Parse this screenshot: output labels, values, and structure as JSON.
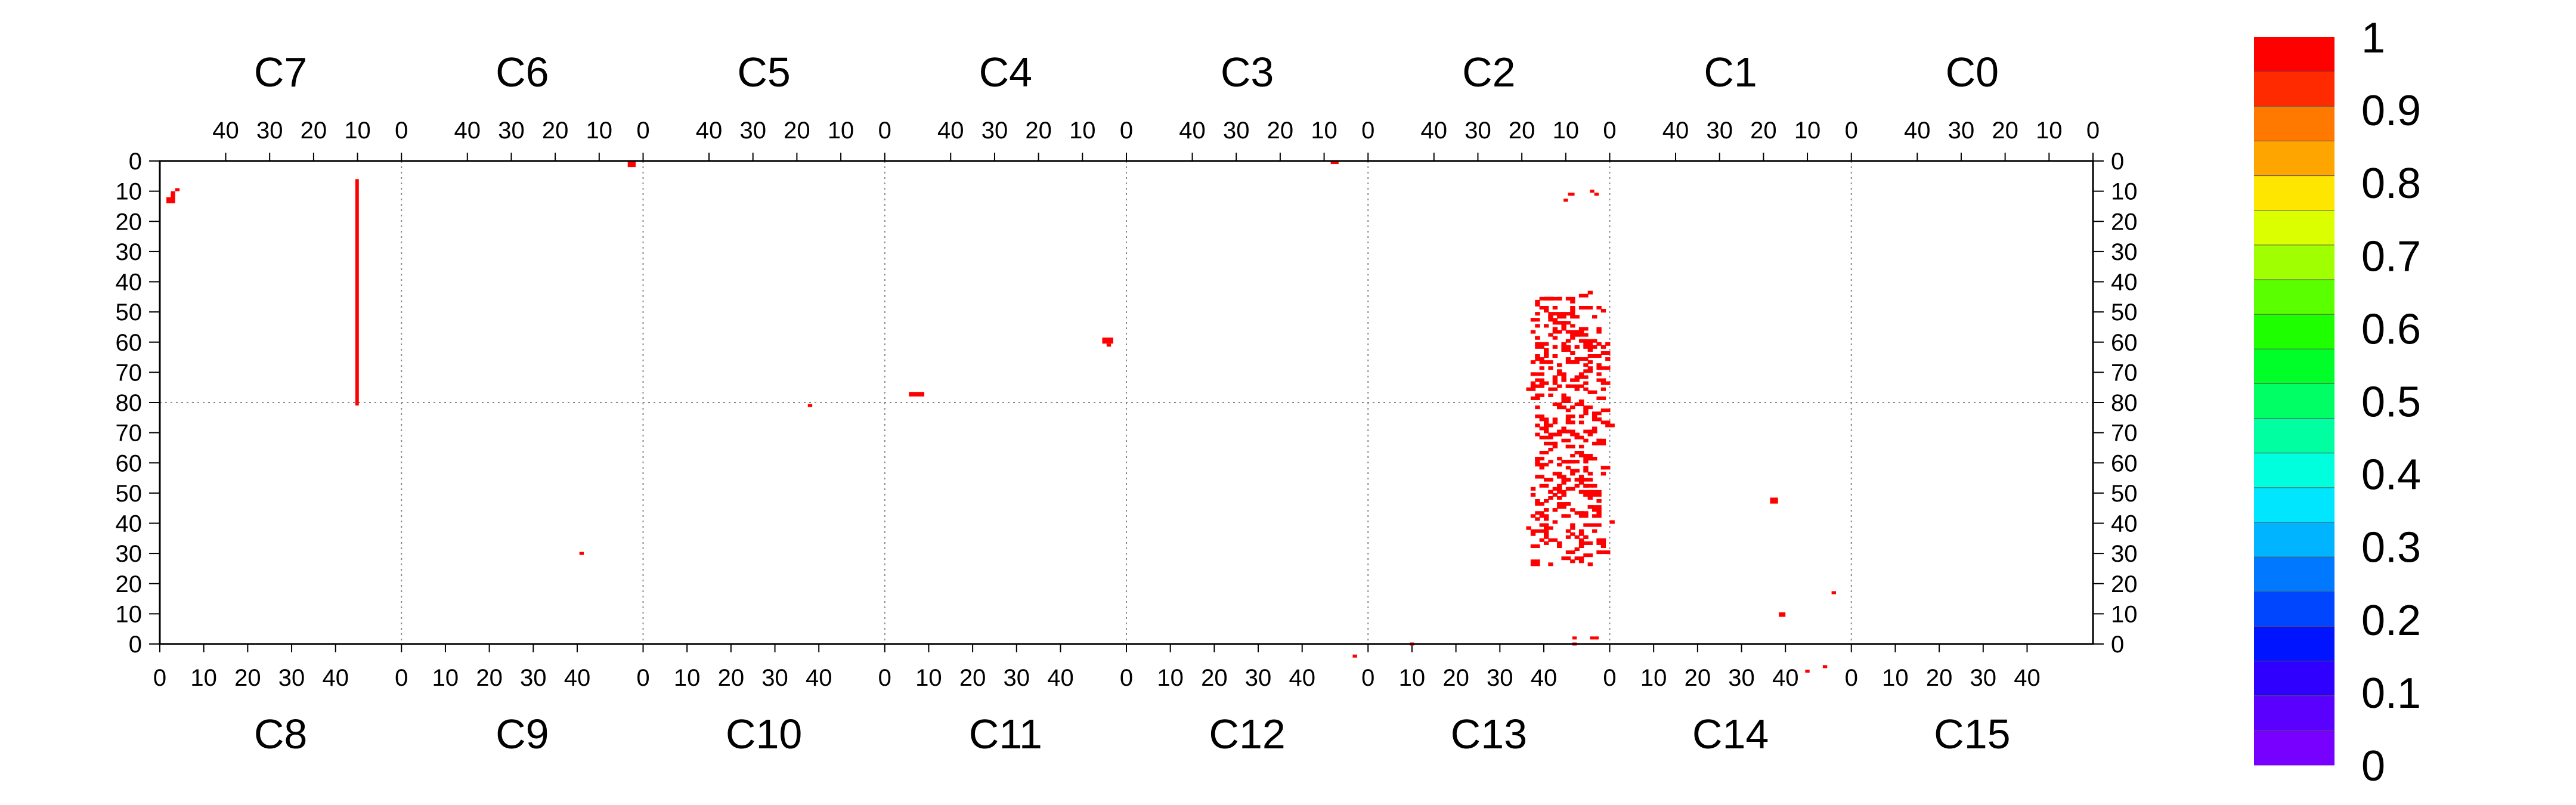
{
  "chart_data": {
    "type": "heatmap",
    "grid": true,
    "value_range": [
      0,
      1
    ],
    "legend_placement": "right",
    "top_labels": [
      "C7",
      "C6",
      "C5",
      "C4",
      "C3",
      "C2",
      "C1",
      "C0"
    ],
    "bottom_labels": [
      "C8",
      "C9",
      "C10",
      "C11",
      "C12",
      "C13",
      "C14",
      "C15"
    ],
    "top_tick_labels": [
      "40",
      "30",
      "20",
      "10",
      "0"
    ],
    "bottom_tick_labels": [
      "0",
      "10",
      "20",
      "30",
      "40"
    ],
    "y_tick_labels": [
      "0",
      "10",
      "20",
      "30",
      "40",
      "50",
      "60",
      "70",
      "80",
      "70",
      "60",
      "50",
      "40",
      "30",
      "20",
      "10",
      "0"
    ],
    "colorbar": {
      "tick_labels": [
        "1",
        "0.9",
        "0.8",
        "0.7",
        "0.6",
        "0.5",
        "0.4",
        "0.3",
        "0.2",
        "0.1",
        "0"
      ],
      "colors": [
        "#ff0000",
        "#ff2a00",
        "#ff7800",
        "#ffa500",
        "#ffe600",
        "#dcff00",
        "#a0ff00",
        "#5aff00",
        "#1eff00",
        "#00ff28",
        "#00ff64",
        "#00ffa0",
        "#00ffdc",
        "#00e6ff",
        "#00b4ff",
        "#0078ff",
        "#0046ff",
        "#0014ff",
        "#3000ff",
        "#5a00ff",
        "#7800ff"
      ]
    },
    "hit_color": "#ff0000",
    "hits": [
      {
        "x": 2.5,
        "y": 10,
        "w": 1,
        "h": 4
      },
      {
        "x": 1.5,
        "y": 12,
        "w": 1,
        "h": 2
      },
      {
        "x": 3.5,
        "y": 9,
        "w": 1,
        "h": 1
      },
      {
        "x": 44.5,
        "y": 6,
        "w": 0.8,
        "h": 2
      },
      {
        "x": 44.5,
        "y": 8,
        "w": 0.8,
        "h": 73
      },
      {
        "x": 106.5,
        "y": 0,
        "w": 1.8,
        "h": 2
      },
      {
        "x": 266.5,
        "y": 0,
        "w": 1.8,
        "h": 1
      },
      {
        "x": 170.5,
        "y": 76.5,
        "w": 3.5,
        "h": 1.5
      },
      {
        "x": 214.5,
        "y": 58.5,
        "w": 2.5,
        "h": 2
      },
      {
        "x": 215.5,
        "y": 60.5,
        "w": 1,
        "h": 1
      },
      {
        "x": 147.5,
        "y": 80.5,
        "w": 1,
        "h": 1
      },
      {
        "x": 95.5,
        "y": 129.5,
        "w": 1,
        "h": 1
      },
      {
        "x": 368.5,
        "y": 149.5,
        "w": 1.5,
        "h": 1.5
      },
      {
        "x": 374.5,
        "y": 168.5,
        "w": 1,
        "h": 1
      },
      {
        "x": 378.5,
        "y": 167,
        "w": 1,
        "h": 1
      },
      {
        "x": 366.5,
        "y": 111.5,
        "w": 1.8,
        "h": 2
      },
      {
        "x": 380.5,
        "y": 142.5,
        "w": 1,
        "h": 1
      },
      {
        "x": 271.5,
        "y": 163.5,
        "w": 1,
        "h": 1
      },
      {
        "x": 284.5,
        "y": 159.5,
        "w": 1,
        "h": 1
      },
      {
        "x": 320.5,
        "y": 10.5,
        "w": 1.5,
        "h": 1
      },
      {
        "x": 325.5,
        "y": 9.5,
        "w": 1,
        "h": 1
      },
      {
        "x": 326.5,
        "y": 10.5,
        "w": 1,
        "h": 1
      },
      {
        "x": 319.5,
        "y": 12.5,
        "w": 1,
        "h": 1
      },
      {
        "x": 321.5,
        "y": 157.5,
        "w": 1,
        "h": 1
      },
      {
        "x": 321.5,
        "y": 159.5,
        "w": 1,
        "h": 1
      },
      {
        "x": 325.5,
        "y": 157.5,
        "w": 1,
        "h": 1
      },
      {
        "x": 326.5,
        "y": 157.5,
        "w": 1,
        "h": 1
      }
    ],
    "hit_cluster": {
      "seed": 7,
      "count": 430,
      "x_range": [
        311,
        330
      ],
      "y_range": [
        42,
        135
      ],
      "x_core": [
        312,
        328
      ],
      "y_core": [
        45,
        133
      ]
    }
  }
}
